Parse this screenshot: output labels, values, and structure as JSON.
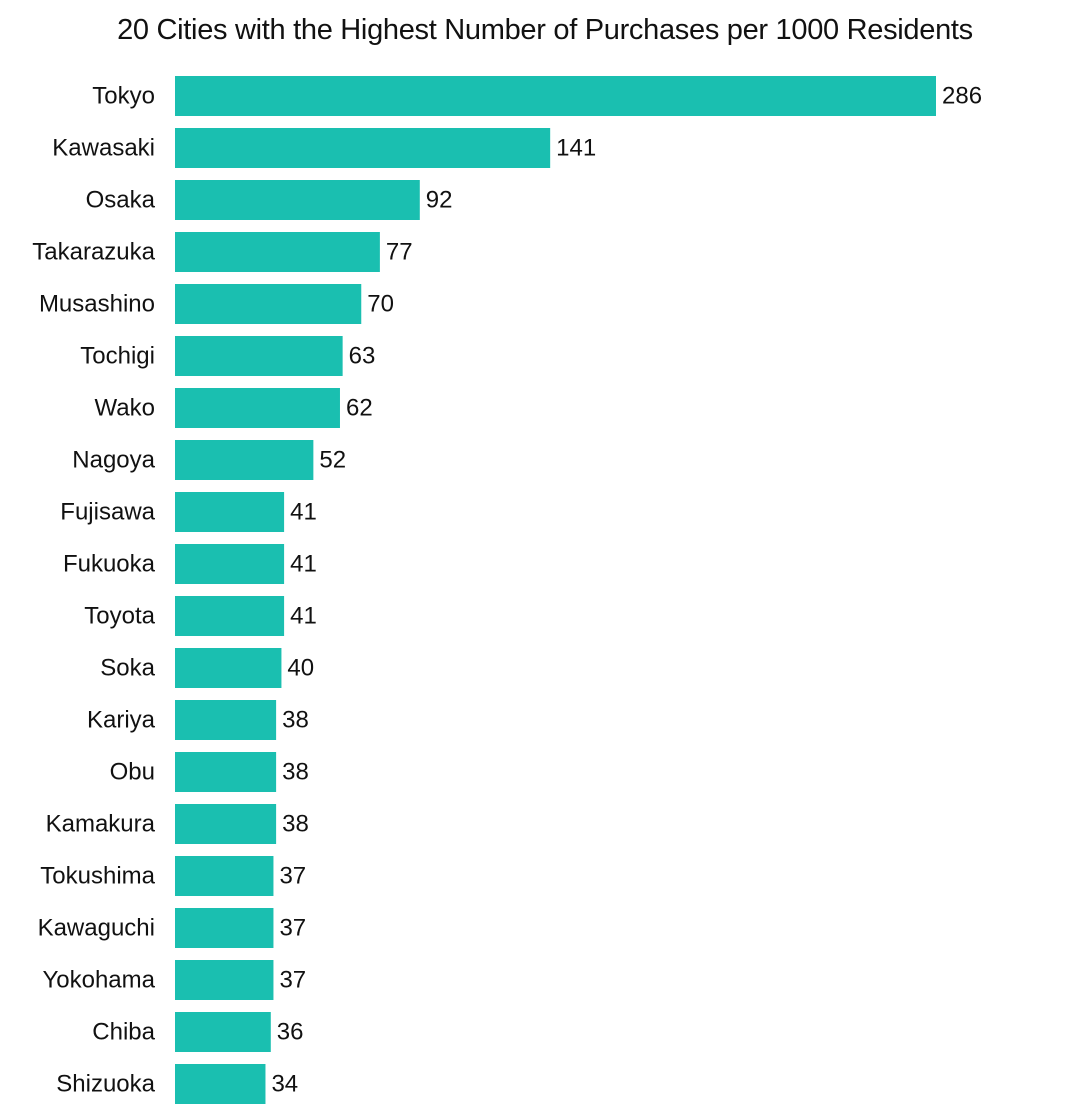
{
  "chart_data": {
    "type": "bar",
    "orientation": "horizontal",
    "title": "20 Cities with the Highest Number of Purchases per 1000 Residents",
    "xlabel": "",
    "ylabel": "",
    "bar_color": "#1abfb0",
    "xlim": [
      0,
      286
    ],
    "grid": false,
    "categories": [
      "Tokyo",
      "Kawasaki",
      "Osaka",
      "Takarazuka",
      "Musashino",
      "Tochigi",
      "Wako",
      "Nagoya",
      "Fujisawa",
      "Fukuoka",
      "Toyota",
      "Soka",
      "Kariya",
      "Obu",
      "Kamakura",
      "Tokushima",
      "Kawaguchi",
      "Yokohama",
      "Chiba",
      "Shizuoka"
    ],
    "values": [
      286,
      141,
      92,
      77,
      70,
      63,
      62,
      52,
      41,
      41,
      41,
      40,
      38,
      38,
      38,
      37,
      37,
      37,
      36,
      34
    ]
  }
}
